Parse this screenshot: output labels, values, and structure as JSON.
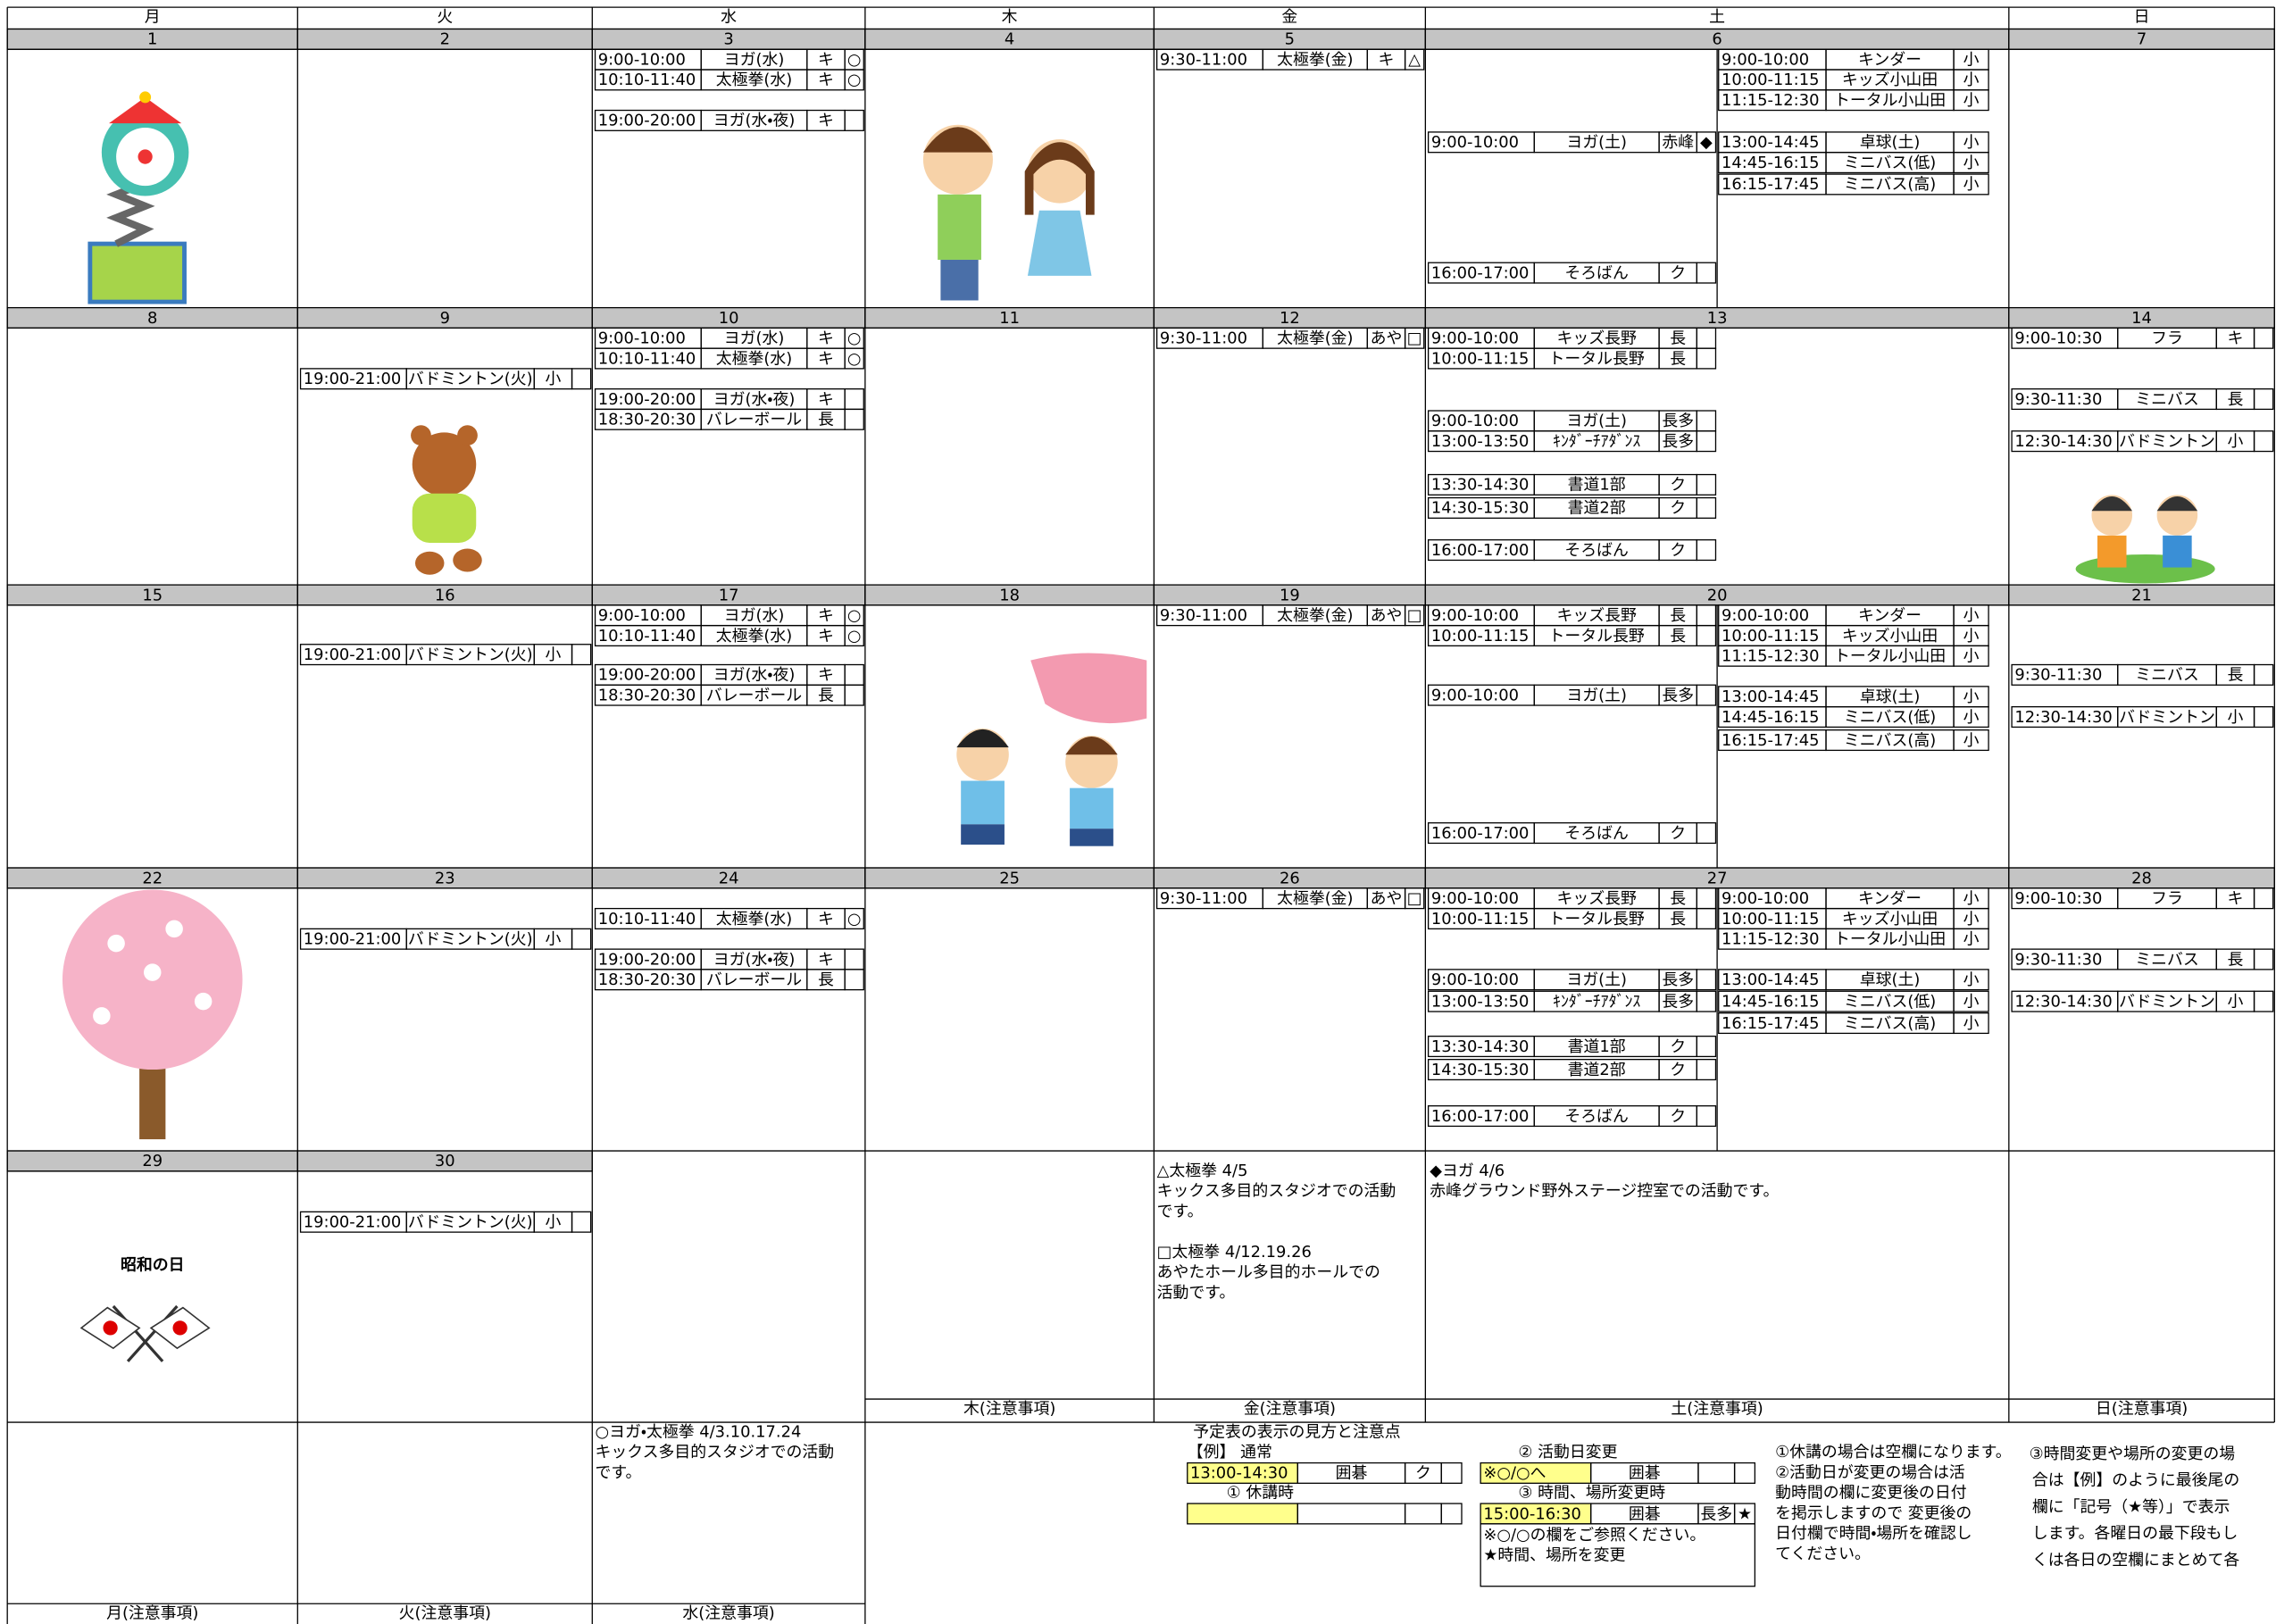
{
  "header": {
    "days": [
      "月",
      "火",
      "水",
      "木",
      "金",
      "土",
      "日"
    ]
  },
  "weeks": [
    {
      "days": [
        {
          "date": 1
        },
        {
          "date": 2
        },
        {
          "date": 3,
          "entries": [
            [
              "9:00-10:00",
              "ヨガ(水)",
              "キ",
              "○"
            ],
            [
              "10:10-11:40",
              "太極拳(水)",
              "キ",
              "○"
            ],
            [
              "19:00-20:00",
              "ヨガ(水・夜)",
              "キ"
            ]
          ]
        },
        {
          "date": 4
        },
        {
          "date": 5,
          "entries": [
            [
              "9:30-11:00",
              "太極拳(金)",
              "キ",
              "△"
            ]
          ]
        },
        {
          "date": 6,
          "entries": [
            [
              "9:00-10:00",
              "ヨガ(土)",
              "赤峰",
              "◆"
            ],
            [
              "16:00-17:00",
              "そろばん",
              "ク"
            ]
          ],
          "entries_right": [
            [
              "9:00-10:00",
              "キンダー",
              "小"
            ],
            [
              "10:00-11:15",
              "キッズ小山田",
              "小"
            ],
            [
              "11:15-12:30",
              "トータル小山田",
              "小"
            ],
            [
              "13:00-14:45",
              "卓球(土)",
              "小"
            ],
            [
              "14:45-16:15",
              "ミニバス(低)",
              "小"
            ],
            [
              "16:15-17:45",
              "ミニバス(高)",
              "小"
            ]
          ]
        },
        {
          "date": 7
        }
      ]
    },
    {
      "days": [
        {
          "date": 8
        },
        {
          "date": 9,
          "entries": [
            [
              "19:00-21:00",
              "バドミントン(火)",
              "小"
            ]
          ]
        },
        {
          "date": 10,
          "entries": [
            [
              "9:00-10:00",
              "ヨガ(水)",
              "キ",
              "○"
            ],
            [
              "10:10-11:40",
              "太極拳(水)",
              "キ",
              "○"
            ],
            [
              "19:00-20:00",
              "ヨガ(水・夜)",
              "キ"
            ],
            [
              "18:30-20:30",
              "バレーボール",
              "長"
            ]
          ]
        },
        {
          "date": 11
        },
        {
          "date": 12,
          "entries": [
            [
              "9:30-11:00",
              "太極拳(金)",
              "あや",
              "□"
            ]
          ]
        },
        {
          "date": 13,
          "entries": [
            [
              "9:00-10:00",
              "キッズ長野",
              "長"
            ],
            [
              "10:00-11:15",
              "トータル長野",
              "長"
            ],
            [
              "9:00-10:00",
              "ヨガ(土)",
              "長多"
            ],
            [
              "13:00-13:50",
              "ｷﾝﾀﾞｰﾁｱﾀﾞﾝｽ",
              "長多"
            ],
            [
              "13:30-14:30",
              "書道1部",
              "ク"
            ],
            [
              "14:30-15:30",
              "書道2部",
              "ク"
            ],
            [
              "16:00-17:00",
              "そろばん",
              "ク"
            ]
          ]
        },
        {
          "date": 14,
          "entries": [
            [
              "9:00-10:30",
              "フラ",
              "キ"
            ],
            [
              "9:30-11:30",
              "ミニバス",
              "長"
            ],
            [
              "12:30-14:30",
              "バドミントン",
              "小"
            ]
          ]
        }
      ]
    },
    {
      "days": [
        {
          "date": 15
        },
        {
          "date": 16,
          "entries": [
            [
              "19:00-21:00",
              "バドミントン(火)",
              "小"
            ]
          ]
        },
        {
          "date": 17,
          "entries": [
            [
              "9:00-10:00",
              "ヨガ(水)",
              "キ",
              "○"
            ],
            [
              "10:10-11:40",
              "太極拳(水)",
              "キ",
              "○"
            ],
            [
              "19:00-20:00",
              "ヨガ(水・夜)",
              "キ"
            ],
            [
              "18:30-20:30",
              "バレーボール",
              "長"
            ]
          ]
        },
        {
          "date": 18
        },
        {
          "date": 19,
          "entries": [
            [
              "9:30-11:00",
              "太極拳(金)",
              "あや",
              "□"
            ]
          ]
        },
        {
          "date": 20,
          "entries": [
            [
              "9:00-10:00",
              "キッズ長野",
              "長"
            ],
            [
              "10:00-11:15",
              "トータル長野",
              "長"
            ],
            [
              "9:00-10:00",
              "ヨガ(土)",
              "長多"
            ],
            [
              "16:00-17:00",
              "そろばん",
              "ク"
            ]
          ],
          "entries_right": [
            [
              "9:00-10:00",
              "キンダー",
              "小"
            ],
            [
              "10:00-11:15",
              "キッズ小山田",
              "小"
            ],
            [
              "11:15-12:30",
              "トータル小山田",
              "小"
            ],
            [
              "13:00-14:45",
              "卓球(土)",
              "小"
            ],
            [
              "14:45-16:15",
              "ミニバス(低)",
              "小"
            ],
            [
              "16:15-17:45",
              "ミニバス(高)",
              "小"
            ]
          ]
        },
        {
          "date": 21,
          "entries": [
            [
              "9:30-11:30",
              "ミニバス",
              "長"
            ],
            [
              "12:30-14:30",
              "バドミントン",
              "小"
            ]
          ]
        }
      ]
    },
    {
      "days": [
        {
          "date": 22
        },
        {
          "date": 23,
          "entries": [
            [
              "19:00-21:00",
              "バドミントン(火)",
              "小"
            ]
          ]
        },
        {
          "date": 24,
          "entries": [
            [
              "10:10-11:40",
              "太極拳(水)",
              "キ",
              "○"
            ],
            [
              "19:00-20:00",
              "ヨガ(水・夜)",
              "キ"
            ],
            [
              "18:30-20:30",
              "バレーボール",
              "長"
            ]
          ]
        },
        {
          "date": 25
        },
        {
          "date": 26,
          "entries": [
            [
              "9:30-11:00",
              "太極拳(金)",
              "あや",
              "□"
            ]
          ]
        },
        {
          "date": 27,
          "entries": [
            [
              "9:00-10:00",
              "キッズ長野",
              "長"
            ],
            [
              "10:00-11:15",
              "トータル長野",
              "長"
            ],
            [
              "9:00-10:00",
              "ヨガ(土)",
              "長多"
            ],
            [
              "13:00-13:50",
              "ｷﾝﾀﾞｰﾁｱﾀﾞﾝｽ",
              "長多"
            ],
            [
              "13:30-14:30",
              "書道1部",
              "ク"
            ],
            [
              "14:30-15:30",
              "書道2部",
              "ク"
            ],
            [
              "16:00-17:00",
              "そろばん",
              "ク"
            ]
          ],
          "entries_right": [
            [
              "9:00-10:00",
              "キンダー",
              "小"
            ],
            [
              "10:00-11:15",
              "キッズ小山田",
              "小"
            ],
            [
              "11:15-12:30",
              "トータル小山田",
              "小"
            ],
            [
              "13:00-14:45",
              "卓球(土)",
              "小"
            ],
            [
              "14:45-16:15",
              "ミニバス(低)",
              "小"
            ],
            [
              "16:15-17:45",
              "ミニバス(高)",
              "小"
            ]
          ]
        },
        {
          "date": 28,
          "entries": [
            [
              "9:00-10:30",
              "フラ",
              "キ"
            ],
            [
              "9:30-11:30",
              "ミニバス",
              "長"
            ],
            [
              "12:30-14:30",
              "バドミントン",
              "小"
            ]
          ]
        }
      ]
    },
    {
      "days": [
        {
          "date": 29,
          "label": "昭和の日"
        },
        {
          "date": 30,
          "entries": [
            [
              "19:00-21:00",
              "バドミントン(火)",
              "小"
            ]
          ]
        }
      ]
    }
  ],
  "notes": {
    "fri": [
      "△太極拳 4/5",
      "キックス多目的スタジオでの活動",
      "です。",
      "□太極拳 4/12.19.26",
      "あやたホール多目的ホールでの",
      "活動です。"
    ],
    "sat": [
      "◆ヨガ 4/6",
      "赤峰グラウンド野外ステージ控室での活動です。"
    ],
    "wed": [
      "○ヨガ・太極拳 4/3.10.17.24",
      "キックス多目的スタジオでの活動",
      "です。"
    ]
  },
  "footer_labels": [
    "月(注意事項)",
    "火(注意事項)",
    "水(注意事項)",
    "木(注意事項)",
    "金(注意事項)",
    "土(注意事項)",
    "日(注意事項)"
  ],
  "legend": {
    "title": "予定表の表示の見方と注意点",
    "example_label": "【例】 通常",
    "example": [
      "13:00-14:30",
      "囲碁",
      "ク"
    ],
    "cancel_label": "① 休講時",
    "change_label": "② 活動日変更",
    "change": [
      "※○/○へ",
      "囲碁"
    ],
    "move_label": "③ 時間、場所変更時",
    "move": [
      "15:00-16:30",
      "囲碁",
      "長多",
      "★"
    ],
    "move_notes": [
      "※○/○の欄をご参照ください。",
      "★時間、場所を変更"
    ],
    "explain": [
      "①休講の場合は空欄になります。",
      "②活動日が変更の場合は活",
      "動時間の欄に変更後の日付",
      "を掲示しますので 変更後の",
      "日付欄で時間・場所を確認し",
      "てください。"
    ],
    "explain2": [
      "③時間変更や場所の変更の場",
      "合は【例】のように最後尾の",
      "欄に「記号（★等）」で表示",
      "します。各曜日の最下段もし",
      "くは各日の空欄にまとめて各"
    ]
  }
}
